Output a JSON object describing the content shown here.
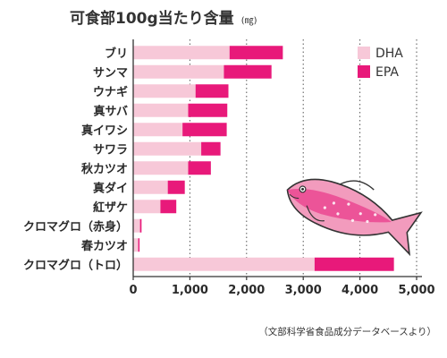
{
  "chart_data": {
    "type": "bar",
    "stacked": true,
    "orientation": "horizontal",
    "title": "可食部100g当たり含量",
    "title_unit": "(㎎)",
    "categories": [
      "ブリ",
      "サンマ",
      "ウナギ",
      "真サバ",
      "真イワシ",
      "サワラ",
      "秋カツオ",
      "真ダイ",
      "紅ザケ",
      "クロマグロ（赤身）",
      "春カツオ",
      "クロマグロ（トロ）"
    ],
    "series": [
      {
        "name": "DHA",
        "color": "#f7c8d8",
        "values": [
          1700,
          1600,
          1100,
          970,
          870,
          1200,
          970,
          610,
          480,
          120,
          88,
          3200
        ]
      },
      {
        "name": "EPA",
        "color": "#e8197a",
        "values": [
          940,
          840,
          580,
          690,
          780,
          340,
          400,
          300,
          280,
          27,
          24,
          1400
        ]
      }
    ],
    "xlim": [
      0,
      5000
    ],
    "xticks": [
      0,
      1000,
      2000,
      3000,
      4000,
      5000
    ],
    "xtick_labels": [
      "0",
      "1,000",
      "2,000",
      "3,000",
      "4,000",
      "5,000"
    ],
    "grid": "vertical dotted",
    "legend_position": "top-right"
  },
  "source_note": "（文部科学省食品成分データベースより）"
}
